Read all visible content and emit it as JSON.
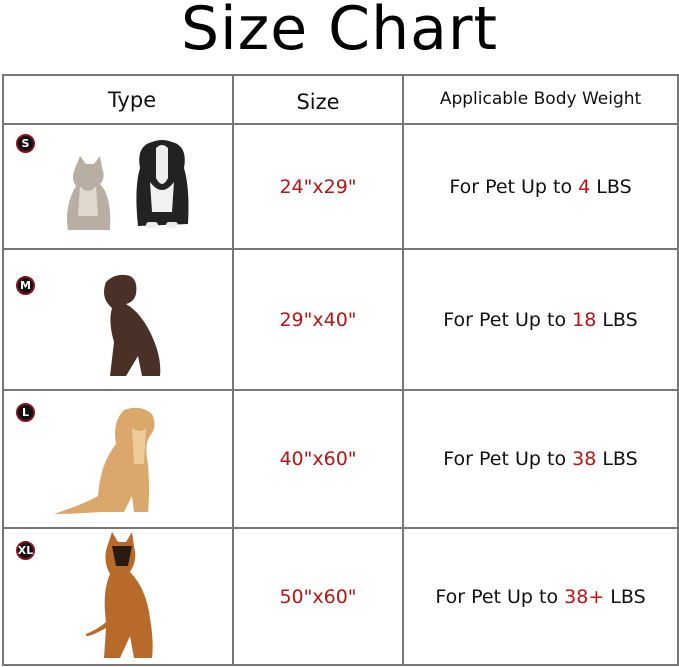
{
  "title": "Size Chart",
  "headers": {
    "type": "Type",
    "size": "Size",
    "weight": "Applicable Body Weight"
  },
  "rows": [
    {
      "badge": "S",
      "size": "24\"x29\"",
      "weight_prefix": "For Pet Up to ",
      "weight_value": "4",
      "weight_unit": " LBS",
      "pets": [
        "cat-image",
        "puppy-image"
      ]
    },
    {
      "badge": "M",
      "size": "29\"x40\"",
      "weight_prefix": "For Pet Up to ",
      "weight_value": "18",
      "weight_unit": " LBS",
      "pets": [
        "labrador-image"
      ]
    },
    {
      "badge": "L",
      "size": "40\"x60\"",
      "weight_prefix": "For Pet Up to ",
      "weight_value": "38",
      "weight_unit": " LBS",
      "pets": [
        "golden-retriever-image"
      ]
    },
    {
      "badge": "XL",
      "size": "50\"x60\"",
      "weight_prefix": "For Pet Up to ",
      "weight_value": "38+",
      "weight_unit": " LBS",
      "pets": [
        "german-shepherd-image"
      ]
    }
  ],
  "colors": {
    "accent": "#b81414",
    "border": "#777777"
  }
}
